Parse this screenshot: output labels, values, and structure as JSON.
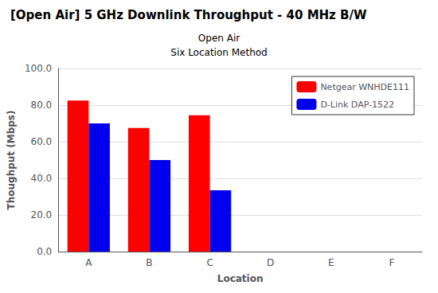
{
  "chart_data": {
    "type": "bar",
    "title": "[Open Air] 5 GHz Downlink Throughput - 40 MHz B/W",
    "subtitle": [
      "Open Air",
      "Six Location Method"
    ],
    "xlabel": "Location",
    "ylabel": "Thoughput (Mbps)",
    "categories": [
      "A",
      "B",
      "C",
      "D",
      "E",
      "F"
    ],
    "series": [
      {
        "name": "Netgear WNHDE111",
        "color": "#FF0000",
        "values": [
          82.5,
          67.5,
          74.5,
          0,
          0,
          0
        ]
      },
      {
        "name": "D-Link DAP-1522",
        "color": "#0000EE",
        "values": [
          70.0,
          50.0,
          33.5,
          0,
          0,
          0
        ]
      }
    ],
    "ylim": [
      0,
      100
    ],
    "yticks": [
      {
        "value": 0,
        "label": "0.0"
      },
      {
        "value": 20,
        "label": "20.0"
      },
      {
        "value": 40,
        "label": "40.0"
      },
      {
        "value": 60,
        "label": "60.0"
      },
      {
        "value": 80,
        "label": "80.0"
      },
      {
        "value": 100,
        "label": "100.0"
      }
    ],
    "grid": true,
    "legend": "upper right"
  }
}
